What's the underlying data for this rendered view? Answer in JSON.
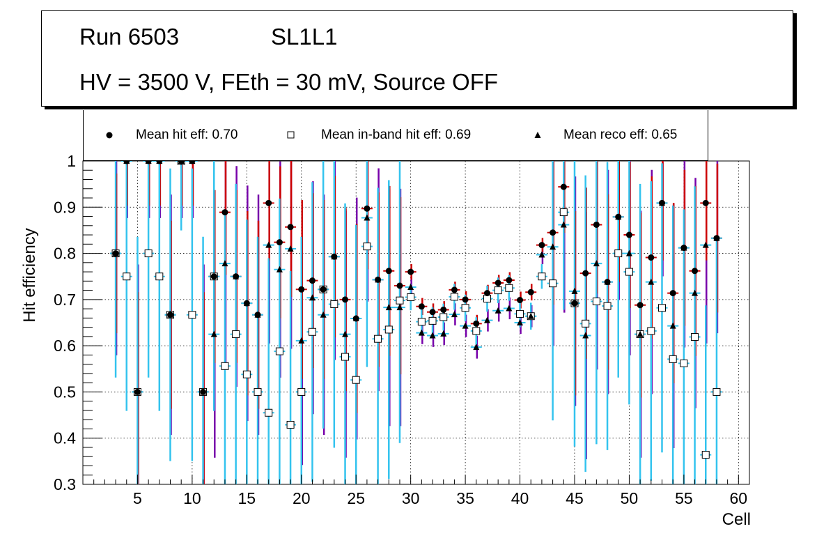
{
  "header": {
    "run_label": "Run 6503",
    "layer_label": "SL1L1",
    "conditions": "HV = 3500 V, FEth = 30 mV, Source OFF"
  },
  "legend": {
    "hit": "Mean hit  eff: 0.70",
    "inband": "Mean in-band hit eff: 0.69",
    "reco": "Mean reco eff: 0.65"
  },
  "colors": {
    "cyan": "#33c3ee",
    "red": "#cc0000",
    "purple": "#7700aa",
    "black": "#000000"
  },
  "chart_data": {
    "type": "scatter",
    "title": "",
    "xlabel": "Cell",
    "ylabel": "Hit efficiency",
    "xlim": [
      0,
      61
    ],
    "ylim": [
      0.3,
      1.0
    ],
    "grid": true,
    "legend_position": "top",
    "xticks": [
      5,
      10,
      15,
      20,
      25,
      30,
      35,
      40,
      45,
      50,
      55,
      60
    ],
    "yticks": [
      0.3,
      0.4,
      0.5,
      0.6,
      0.7,
      0.8,
      0.9,
      1.0
    ],
    "xtick_labels": [
      "5",
      "10",
      "15",
      "20",
      "25",
      "30",
      "35",
      "40",
      "45",
      "50",
      "55",
      "60"
    ],
    "ytick_labels": [
      "0.3",
      "0.4",
      "0.5",
      "0.6",
      "0.7",
      "0.8",
      "0.9",
      "1"
    ],
    "x": [
      3,
      4,
      5,
      6,
      7,
      8,
      9,
      10,
      11,
      12,
      13,
      14,
      15,
      16,
      17,
      18,
      19,
      20,
      21,
      22,
      23,
      24,
      25,
      26,
      27,
      28,
      29,
      30,
      31,
      32,
      33,
      34,
      35,
      36,
      37,
      38,
      39,
      40,
      41,
      42,
      43,
      44,
      45,
      46,
      47,
      48,
      49,
      50,
      51,
      52,
      53,
      54,
      55,
      56,
      57,
      58
    ],
    "series": [
      {
        "name": "Mean hit  eff: 0.70",
        "marker": "circle",
        "values": [
          0.8,
          1.0,
          0.5,
          1.0,
          1.0,
          0.667,
          1.0,
          1.0,
          0.5,
          0.75,
          0.889,
          0.75,
          0.692,
          0.667,
          0.909,
          0.824,
          0.857,
          0.722,
          0.741,
          0.722,
          0.793,
          0.7,
          0.659,
          0.897,
          0.743,
          0.762,
          0.73,
          0.76,
          0.685,
          0.673,
          0.678,
          0.721,
          0.7,
          0.648,
          0.714,
          0.736,
          0.742,
          0.699,
          0.716,
          0.818,
          0.845,
          0.944,
          0.692,
          0.757,
          0.862,
          0.738,
          0.879,
          0.84,
          0.688,
          0.791,
          0.909,
          0.714,
          0.812,
          0.762,
          0.909,
          0.833
        ]
      },
      {
        "name": "Mean in-band hit eff: 0.69",
        "marker": "open-square",
        "values": [
          0.8,
          0.75,
          0.5,
          0.8,
          0.75,
          0.667,
          1.0,
          0.667,
          0.5,
          0.75,
          0.556,
          0.625,
          0.538,
          0.5,
          0.455,
          0.588,
          0.429,
          0.5,
          0.63,
          0.722,
          0.69,
          0.576,
          0.526,
          0.815,
          0.615,
          0.635,
          0.698,
          0.705,
          0.652,
          0.654,
          0.662,
          0.706,
          0.682,
          0.632,
          0.702,
          0.72,
          0.725,
          0.669,
          0.664,
          0.75,
          0.735,
          0.889,
          0.692,
          0.648,
          0.696,
          0.686,
          0.8,
          0.76,
          0.625,
          0.632,
          0.682,
          0.571,
          0.562,
          0.619,
          0.364,
          0.5
        ]
      },
      {
        "name": "Mean reco eff: 0.65",
        "marker": "triangle",
        "values": [
          0.8,
          1.0,
          0.5,
          1.0,
          1.0,
          0.667,
          1.0,
          1.0,
          0.5,
          0.625,
          0.778,
          0.75,
          0.692,
          0.667,
          0.818,
          0.765,
          0.81,
          0.611,
          0.704,
          0.667,
          0.793,
          0.625,
          0.659,
          0.877,
          0.743,
          0.683,
          0.683,
          0.727,
          0.628,
          0.622,
          0.626,
          0.668,
          0.643,
          0.597,
          0.655,
          0.676,
          0.681,
          0.65,
          0.664,
          0.797,
          0.814,
          0.862,
          0.718,
          0.622,
          0.778,
          0.738,
          0.879,
          0.8,
          0.625,
          0.738,
          0.909,
          0.643,
          0.812,
          0.714,
          0.818,
          0.833
        ]
      }
    ]
  }
}
